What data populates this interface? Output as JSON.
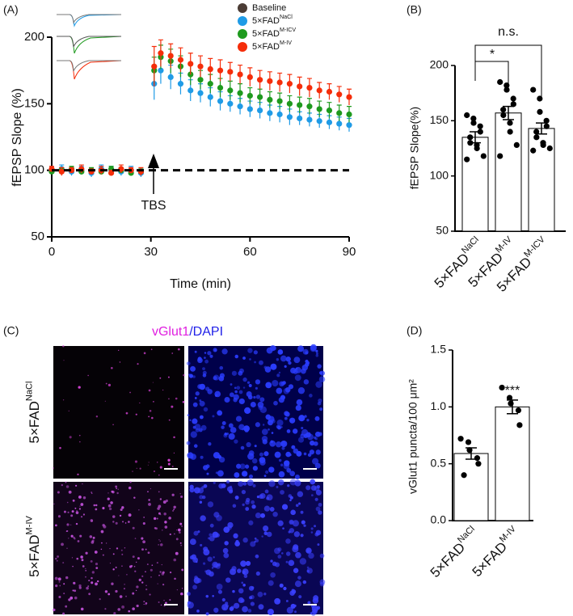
{
  "chart_data": [
    {
      "type": "line",
      "panel": "(A)",
      "x_label": "Time (min)",
      "y_label": "fEPSP Slope (%)",
      "annotation": "TBS",
      "xlim": [
        0,
        90
      ],
      "xticks": [
        0,
        30,
        60,
        90
      ],
      "ylim": [
        50,
        200
      ],
      "yticks": [
        50,
        100,
        150,
        200
      ],
      "legend": "top-right",
      "x": [
        0,
        3,
        6,
        9,
        12,
        15,
        18,
        21,
        24,
        27,
        31,
        33,
        36,
        39,
        42,
        45,
        48,
        51,
        54,
        57,
        60,
        63,
        66,
        69,
        72,
        75,
        78,
        81,
        84,
        87,
        90
      ],
      "series": [
        {
          "name": "Baseline",
          "color": "#4b3c35",
          "dash": true,
          "values": [
            100,
            100,
            100,
            100,
            100,
            100,
            100,
            100,
            100,
            100,
            100,
            100,
            100,
            100,
            100,
            100,
            100,
            100,
            100,
            100,
            100,
            100,
            100,
            100,
            100,
            100,
            100,
            100,
            100,
            100,
            100
          ]
        },
        {
          "name": "5×FAD",
          "name_sup": "NaCl",
          "color": "#1f9be6",
          "values": [
            100,
            101,
            99,
            100,
            98,
            101,
            100,
            99,
            100,
            98,
            165,
            175,
            170,
            165,
            160,
            158,
            155,
            152,
            150,
            148,
            146,
            145,
            143,
            142,
            140,
            139,
            138,
            137,
            136,
            135,
            134
          ],
          "errors": [
            3,
            3,
            3,
            3,
            3,
            3,
            3,
            3,
            3,
            3,
            12,
            10,
            9,
            8,
            8,
            7,
            7,
            7,
            6,
            6,
            6,
            6,
            6,
            6,
            6,
            5,
            5,
            5,
            5,
            5,
            5
          ]
        },
        {
          "name": "5×FAD",
          "name_sup": "M-ICV",
          "color": "#1e9a1e",
          "values": [
            99,
            100,
            101,
            99,
            100,
            99,
            101,
            100,
            98,
            99,
            175,
            185,
            182,
            178,
            172,
            168,
            165,
            162,
            160,
            158,
            156,
            155,
            153,
            152,
            150,
            149,
            148,
            146,
            145,
            143,
            142
          ],
          "errors": [
            2,
            2,
            2,
            2,
            2,
            2,
            2,
            2,
            2,
            2,
            10,
            9,
            9,
            8,
            8,
            7,
            7,
            7,
            7,
            7,
            6,
            6,
            6,
            6,
            6,
            6,
            6,
            6,
            6,
            6,
            6
          ]
        },
        {
          "name": "5×FAD",
          "name_sup": "M-IV",
          "color": "#f52d0a",
          "values": [
            101,
            99,
            100,
            101,
            99,
            100,
            98,
            101,
            100,
            99,
            178,
            188,
            186,
            183,
            180,
            178,
            176,
            175,
            174,
            172,
            170,
            168,
            167,
            166,
            165,
            163,
            162,
            160,
            159,
            157,
            155
          ],
          "errors": [
            2,
            3,
            2,
            3,
            2,
            3,
            2,
            3,
            2,
            3,
            15,
            10,
            9,
            9,
            8,
            8,
            8,
            8,
            7,
            7,
            7,
            7,
            7,
            7,
            7,
            7,
            7,
            6,
            6,
            6,
            6
          ]
        }
      ]
    },
    {
      "type": "bar",
      "panel": "(B)",
      "y_label": "fEPSP Slope(%)",
      "ylim": [
        50,
        200
      ],
      "yticks": [
        50,
        100,
        150,
        200
      ],
      "categories": [
        "5×FAD",
        "5×FAD",
        "5×FAD"
      ],
      "category_sups": [
        "NaCl",
        "M-IV",
        "M-ICV"
      ],
      "values": [
        135,
        157,
        143
      ],
      "errors": [
        5,
        6,
        5
      ],
      "points": [
        [
          155,
          152,
          148,
          145,
          140,
          135,
          130,
          128,
          125,
          118,
          115
        ],
        [
          185,
          182,
          178,
          170,
          165,
          160,
          155,
          148,
          140,
          128,
          118
        ],
        [
          178,
          170,
          158,
          150,
          145,
          140,
          135,
          130,
          128,
          125,
          123
        ]
      ],
      "annotations": [
        "n.s.",
        "*"
      ],
      "color": "#ffffff"
    },
    {
      "type": "bar",
      "panel": "(D)",
      "y_label": "vGlut1 puncta/100 μm²",
      "ylim": [
        0,
        1.5
      ],
      "yticks": [
        {
          "value": 0,
          "label": "0.0"
        },
        {
          "value": 0.5,
          "label": "0.5"
        },
        {
          "value": 1,
          "label": "1.0"
        },
        {
          "value": 1.5,
          "label": "1.5"
        }
      ],
      "categories": [
        "5×FAD",
        "5×FAD"
      ],
      "category_sups": [
        "NaCl",
        "M-IV"
      ],
      "values": [
        0.59,
        1.0
      ],
      "errors": [
        0.05,
        0.06
      ],
      "points": [
        [
          0.72,
          0.69,
          0.62,
          0.55,
          0.5,
          0.4
        ],
        [
          1.17,
          1.08,
          1.03,
          0.97,
          0.84
        ]
      ],
      "annotations": [
        "***"
      ],
      "color": "#ffffff"
    }
  ],
  "panel_c": {
    "panel": "(C)",
    "title_parts": [
      "vGlut1",
      "/DAPI"
    ],
    "rows": [
      {
        "label": "5×FAD",
        "label_sup": "NaCl"
      },
      {
        "label": "5×FAD",
        "label_sup": "M-IV"
      }
    ]
  }
}
